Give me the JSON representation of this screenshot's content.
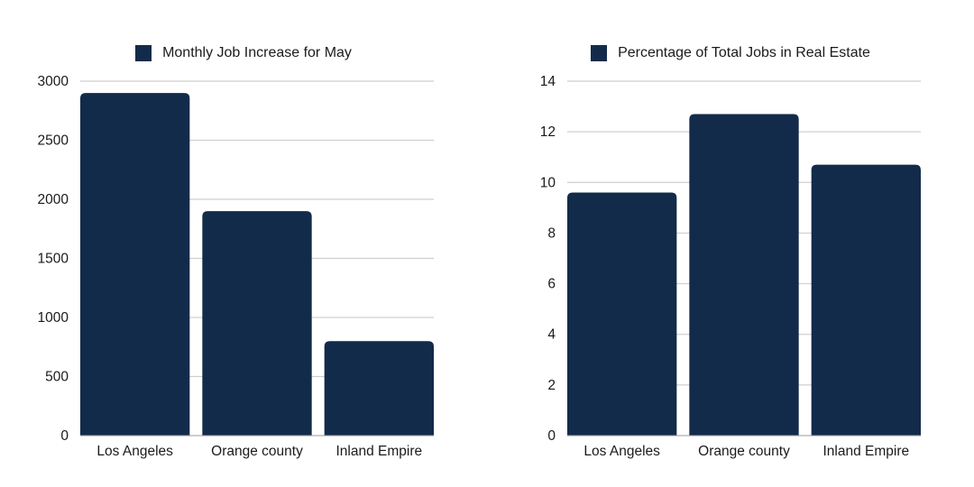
{
  "colors": {
    "bar": "#132b4a",
    "grid": "#cfcfcf",
    "axis": "#9a9a9a"
  },
  "chart_data": [
    {
      "type": "bar",
      "title": "",
      "xlabel": "",
      "ylabel": "",
      "legend_position": "top-center",
      "categories": [
        "Los Angeles",
        "Orange county",
        "Inland Empire"
      ],
      "series": [
        {
          "name": "Monthly Job Increase for May",
          "values": [
            2900,
            1900,
            800
          ]
        }
      ],
      "ylim": [
        0,
        3000
      ],
      "yticks": [
        0,
        500,
        1000,
        1500,
        2000,
        2500,
        3000
      ],
      "grid": true
    },
    {
      "type": "bar",
      "title": "",
      "xlabel": "",
      "ylabel": "",
      "legend_position": "top-center",
      "categories": [
        "Los Angeles",
        "Orange county",
        "Inland Empire"
      ],
      "series": [
        {
          "name": "Percentage of Total Jobs in Real Estate",
          "values": [
            9.6,
            12.7,
            10.7
          ]
        }
      ],
      "ylim": [
        0,
        14
      ],
      "yticks": [
        0,
        2,
        4,
        6,
        8,
        10,
        12,
        14
      ],
      "grid": true
    }
  ]
}
